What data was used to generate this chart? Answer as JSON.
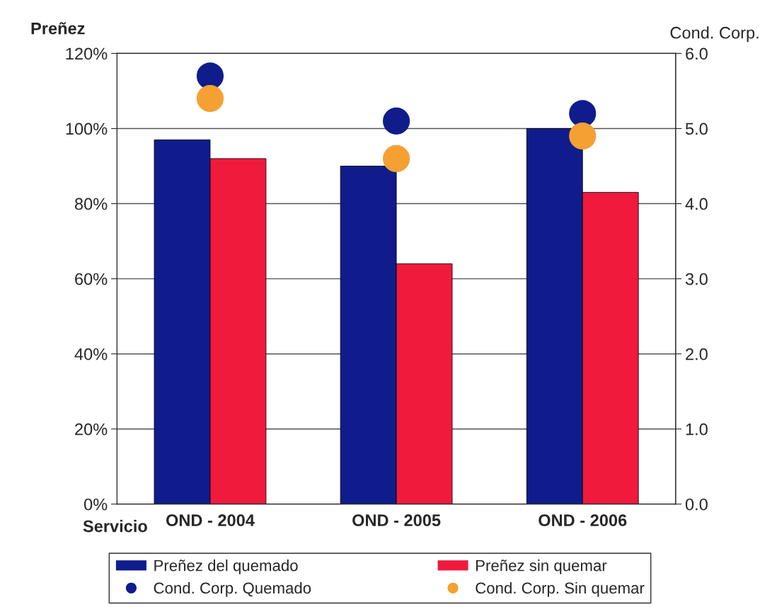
{
  "chart_data": {
    "type": "bar",
    "categories": [
      "OND - 2004",
      "OND - 2005",
      "OND - 2006"
    ],
    "xlabel": "Servicio",
    "ylabel": "Preñez",
    "y2label": "Cond. Corp.",
    "series": [
      {
        "name": "Preñez del quemado",
        "color": "#101c8c",
        "values": [
          97,
          90,
          100
        ]
      },
      {
        "name": "Preñez sin quemar",
        "color": "#f01a3c",
        "values": [
          92,
          64,
          83
        ]
      },
      {
        "name": "Cond. Corp. Quemado",
        "type": "scatter",
        "axis": "y2",
        "color": "#101c8c",
        "values": [
          5.7,
          5.1,
          5.2
        ]
      },
      {
        "name": "Cond. Corp. Sin quemar",
        "type": "scatter",
        "axis": "y2",
        "color": "#f5a032",
        "values": [
          5.4,
          4.6,
          4.9
        ]
      }
    ],
    "ylim": [
      0,
      120
    ],
    "yticks": [
      {
        "value": 0,
        "label": "0%"
      },
      {
        "value": 20,
        "label": "20%"
      },
      {
        "value": 40,
        "label": "40%"
      },
      {
        "value": 60,
        "label": "60%"
      },
      {
        "value": 80,
        "label": "80%"
      },
      {
        "value": 100,
        "label": "100%"
      },
      {
        "value": 120,
        "label": "120%"
      }
    ],
    "y2lim": [
      0,
      6
    ],
    "y2ticks": [
      {
        "value": 0,
        "label": "0.0"
      },
      {
        "value": 1,
        "label": "1.0"
      },
      {
        "value": 2,
        "label": "2.0"
      },
      {
        "value": 3,
        "label": "3.0"
      },
      {
        "value": 4,
        "label": "4.0"
      },
      {
        "value": 5,
        "label": "5.0"
      },
      {
        "value": 6,
        "label": "6.0"
      }
    ],
    "grid": "y",
    "legend": "bottom",
    "marker": "circle"
  }
}
